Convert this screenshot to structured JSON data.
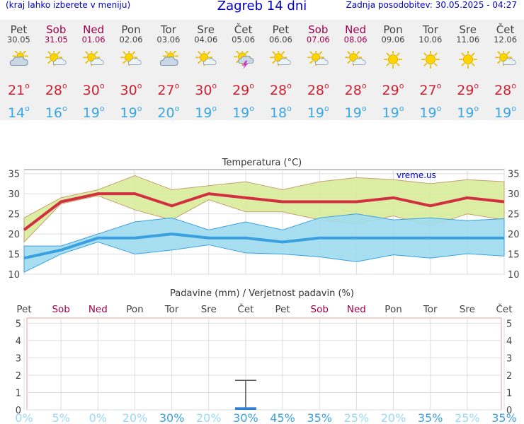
{
  "header": {
    "left_note": "(kraj lahko izberete v meniju)",
    "title": "Zagreb 14 dni",
    "updated": "Zadnja posodobitev: 30.05.2025 - 04:27"
  },
  "colors": {
    "max_line": "#d23040",
    "min_line": "#3aa0e0",
    "max_band": "#d7ec9a",
    "min_band": "#9edbee",
    "weekend_day": "#a0004a"
  },
  "days": [
    {
      "name": "Pet",
      "date": "30.05",
      "weekend": false,
      "icon": "partly-cloudy-icon",
      "tmax": "21",
      "tmin": "14"
    },
    {
      "name": "Sob",
      "date": "31.05",
      "weekend": true,
      "icon": "sun-cloud-icon",
      "tmax": "28",
      "tmin": "16"
    },
    {
      "name": "Ned",
      "date": "01.06",
      "weekend": true,
      "icon": "sun-cloud-icon",
      "tmax": "30",
      "tmin": "19"
    },
    {
      "name": "Pon",
      "date": "02.06",
      "weekend": false,
      "icon": "sun-cloud-icon",
      "tmax": "30",
      "tmin": "19"
    },
    {
      "name": "Tor",
      "date": "03.06",
      "weekend": false,
      "icon": "partly-cloudy-icon",
      "tmax": "27",
      "tmin": "20"
    },
    {
      "name": "Sre",
      "date": "04.06",
      "weekend": false,
      "icon": "sun-cloud-icon",
      "tmax": "30",
      "tmin": "19"
    },
    {
      "name": "Čet",
      "date": "05.06",
      "weekend": false,
      "icon": "thunderstorm-icon",
      "tmax": "29",
      "tmin": "19"
    },
    {
      "name": "Pet",
      "date": "06.06",
      "weekend": false,
      "icon": "sun-cloud-icon",
      "tmax": "28",
      "tmin": "18"
    },
    {
      "name": "Sob",
      "date": "07.06",
      "weekend": true,
      "icon": "sun-cloud-icon",
      "tmax": "28",
      "tmin": "19"
    },
    {
      "name": "Ned",
      "date": "08.06",
      "weekend": true,
      "icon": "sun-cloud-icon",
      "tmax": "28",
      "tmin": "19"
    },
    {
      "name": "Pon",
      "date": "09.06",
      "weekend": false,
      "icon": "sun-icon",
      "tmax": "29",
      "tmin": "19"
    },
    {
      "name": "Tor",
      "date": "10.06",
      "weekend": false,
      "icon": "sun-icon",
      "tmax": "27",
      "tmin": "19"
    },
    {
      "name": "Sre",
      "date": "11.06",
      "weekend": false,
      "icon": "sun-icon",
      "tmax": "29",
      "tmin": "19"
    },
    {
      "name": "Čet",
      "date": "12.06",
      "weekend": false,
      "icon": "sun-cloud-icon",
      "tmax": "28",
      "tmin": "19"
    }
  ],
  "chart_data": [
    {
      "type": "line",
      "title": "Temperatura (°C)",
      "watermark": "vreme.us",
      "ylim": [
        10,
        36
      ],
      "yticks": [
        10,
        15,
        20,
        25,
        30,
        35
      ],
      "grid": true,
      "series": [
        {
          "name": "max",
          "values": [
            21,
            28,
            30,
            30,
            27,
            30,
            29,
            28,
            28,
            28,
            29,
            27,
            29,
            28
          ],
          "band_high": [
            24,
            29,
            31,
            34.5,
            31,
            32,
            33,
            31,
            33,
            34,
            33.5,
            32.5,
            33.5,
            33
          ],
          "band_low": [
            18,
            27.5,
            29.5,
            26,
            23.5,
            28.5,
            25.5,
            25.5,
            23.5,
            22.5,
            24.5,
            22,
            25,
            23.5
          ]
        },
        {
          "name": "min",
          "values": [
            14,
            16,
            19,
            19,
            20,
            19,
            19,
            18,
            19,
            19,
            19,
            19,
            19,
            19
          ],
          "band_high": [
            17,
            17,
            20,
            23,
            24,
            21,
            23,
            21,
            24,
            25,
            23.5,
            24,
            23.3,
            23.8
          ],
          "band_low": [
            10.5,
            15,
            18,
            15,
            16,
            17.3,
            15.3,
            15,
            14.3,
            13.1,
            14.8,
            14,
            15.1,
            14.5
          ]
        }
      ]
    },
    {
      "type": "bar",
      "title": "Padavine (mm) / Verjetnost padavin (%)",
      "ylim": [
        0,
        5.3
      ],
      "yticks": [
        0,
        1,
        2,
        3,
        4,
        5
      ],
      "grid": true,
      "categories": [
        "Pet",
        "Sob",
        "Ned",
        "Pon",
        "Tor",
        "Sre",
        "Čet",
        "Pet",
        "Sob",
        "Ned",
        "Pon",
        "Tor",
        "Sre",
        "Čet"
      ],
      "precip_mm": [
        0,
        0,
        0,
        0,
        0,
        0,
        0.15,
        0,
        0,
        0,
        0,
        0,
        0,
        0
      ],
      "precip_range_high": [
        null,
        null,
        null,
        null,
        null,
        null,
        1.7,
        null,
        null,
        null,
        null,
        null,
        null,
        null
      ],
      "probability": [
        "0%",
        "5%",
        "0%",
        "20%",
        "30%",
        "20%",
        "30%",
        "45%",
        "35%",
        "25%",
        "20%",
        "35%",
        "25%",
        "35%"
      ]
    }
  ]
}
